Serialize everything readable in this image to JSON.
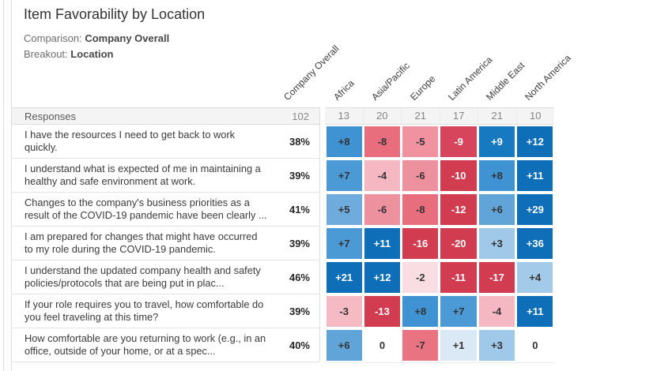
{
  "header": {
    "title": "Item Favorability by Location",
    "comparison_label": "Comparison:",
    "comparison_value": "Company Overall",
    "breakout_label": "Breakout:",
    "breakout_value": "Location"
  },
  "chart_data": {
    "type": "heatmap",
    "title": "Item Favorability by Location",
    "comparison": "Company Overall",
    "breakout": "Location",
    "first_column_header": "Responses",
    "overall_column": {
      "label": "Company Overall",
      "count": "102"
    },
    "columns": [
      {
        "label": "Africa",
        "count": "13"
      },
      {
        "label": "Asia/Pacific",
        "count": "20"
      },
      {
        "label": "Europe",
        "count": "21"
      },
      {
        "label": "Latin America",
        "count": "17"
      },
      {
        "label": "Middle East",
        "count": "21"
      },
      {
        "label": "North America",
        "count": "10"
      }
    ],
    "rows": [
      {
        "question": "I have the resources I need to get back to work quickly.",
        "favorability": "38%",
        "values": [
          8,
          -8,
          -5,
          -9,
          9,
          12
        ]
      },
      {
        "question": "I understand what is expected of me in maintaining a healthy and safe environment at work.",
        "favorability": "39%",
        "values": [
          7,
          -4,
          -6,
          -10,
          8,
          11
        ]
      },
      {
        "question": "Changes to the company's business priorities as a result of the COVID-19 pandemic have been clearly ...",
        "favorability": "41%",
        "values": [
          5,
          -6,
          -8,
          -12,
          6,
          29
        ]
      },
      {
        "question": "I am prepared for changes that might have occurred to my role during the COVID-19 pandemic.",
        "favorability": "39%",
        "values": [
          7,
          11,
          -16,
          -20,
          3,
          36
        ]
      },
      {
        "question": "I understand the updated company health and safety policies/protocols that are being put in plac...",
        "favorability": "46%",
        "values": [
          21,
          12,
          -2,
          -11,
          -17,
          4
        ]
      },
      {
        "question": "If your role requires you to travel, how comfortable do you feel traveling at this time?",
        "favorability": "39%",
        "values": [
          -3,
          -13,
          8,
          7,
          -4,
          11
        ]
      },
      {
        "question": "How comfortable are you returning to work (e.g., in an office, outside of your home, or at a spec...",
        "favorability": "40%",
        "values": [
          6,
          0,
          -7,
          1,
          3,
          0
        ]
      }
    ],
    "colors": {
      "positive_scale": [
        "#dbe8f5",
        "#c9def0",
        "#a0c8e8",
        "#a4cae9",
        "#6fabdc",
        "#61a5d8",
        "#4c9ad5",
        "#3f93d3",
        "#1779c0",
        "#0e6fb8"
      ],
      "negative_scale": [
        "#fdeef1",
        "#fadce3",
        "#f6bac5",
        "#f5b7c2",
        "#f0929f",
        "#ee919f",
        "#ea7381",
        "#e86e7e",
        "#d6455b",
        "#d23c51"
      ],
      "zero": "#ffffff",
      "text_dark": "#333333",
      "text_light": "#ffffff",
      "white_text_min_magnitude": 9
    }
  }
}
